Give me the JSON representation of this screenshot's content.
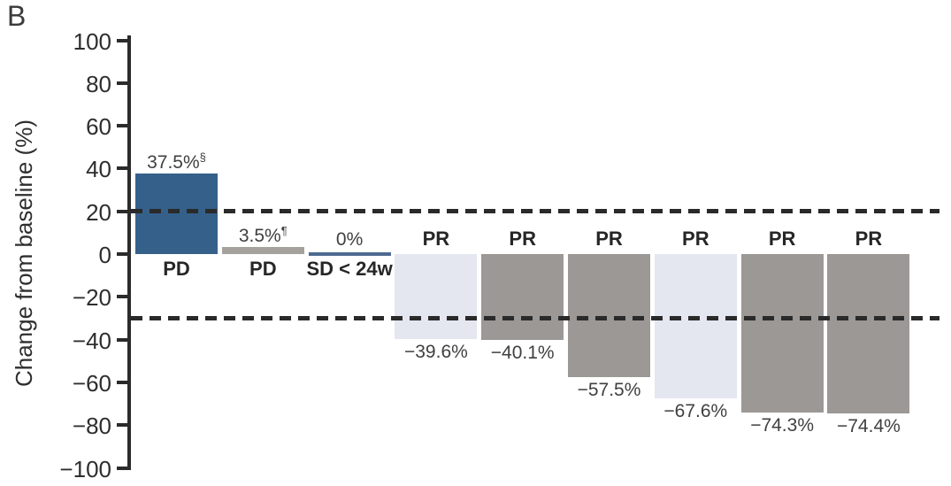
{
  "panel_label": "B",
  "chart_data": {
    "type": "bar",
    "title": "",
    "xlabel": "",
    "ylabel": "Change from baseline (%)",
    "ylim": [
      -100,
      100
    ],
    "grid": false,
    "legend": false,
    "yticks": [
      100,
      80,
      60,
      40,
      20,
      0,
      -20,
      -40,
      -60,
      -80,
      -100
    ],
    "ytick_labels": [
      "100",
      "80",
      "60",
      "40",
      "20",
      "0",
      "−20",
      "−40",
      "−60",
      "−80",
      "−100"
    ],
    "reference_lines": [
      {
        "y": 20,
        "style": "dashed"
      },
      {
        "y": -30,
        "style": "dashed"
      }
    ],
    "bars": [
      {
        "category": "PD",
        "value": 37.5,
        "value_label": "37.5%",
        "note": "§",
        "color_key": "blue"
      },
      {
        "category": "PD",
        "value": 3.5,
        "value_label": "3.5%",
        "note": "¶",
        "color_key": "gray_thin"
      },
      {
        "category": "SD < 24w",
        "value": 0,
        "value_label": "0%",
        "note": "",
        "color_key": "blue_line"
      },
      {
        "category": "PR",
        "value": -39.6,
        "value_label": "−39.6%",
        "note": "",
        "color_key": "light"
      },
      {
        "category": "PR",
        "value": -40.1,
        "value_label": "−40.1%",
        "note": "",
        "color_key": "gray"
      },
      {
        "category": "PR",
        "value": -57.5,
        "value_label": "−57.5%",
        "note": "",
        "color_key": "gray"
      },
      {
        "category": "PR",
        "value": -67.6,
        "value_label": "−67.6%",
        "note": "",
        "color_key": "light"
      },
      {
        "category": "PR",
        "value": -74.3,
        "value_label": "−74.3%",
        "note": "",
        "color_key": "gray"
      },
      {
        "category": "PR",
        "value": -74.4,
        "value_label": "−74.4%",
        "note": "",
        "color_key": "gray"
      }
    ],
    "colors": {
      "blue": "#35608a",
      "gray": "#9b9895",
      "light": "#e4e6f0",
      "gray_thin": "#a5a29e",
      "blue_line": "#4e6a90",
      "dash": "#2a2a2a",
      "axis": "#2b2b2b"
    }
  }
}
